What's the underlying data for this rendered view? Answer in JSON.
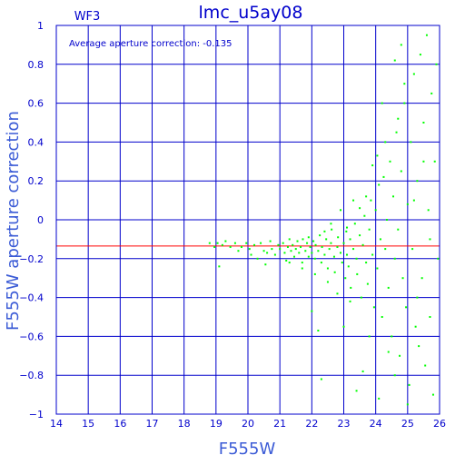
{
  "chart_data": {
    "type": "scatter",
    "title": "lmc_u5ay08",
    "panel_label": "WF3",
    "annotation": "Average aperture correction: -0.135",
    "xlabel": "F555W",
    "ylabel": "F555W aperture correction",
    "xlim": [
      14,
      26
    ],
    "ylim": [
      -1,
      1
    ],
    "x_ticks": [
      14,
      15,
      16,
      17,
      18,
      19,
      20,
      21,
      22,
      23,
      24,
      25,
      26
    ],
    "y_ticks": [
      -1,
      -0.8,
      -0.6,
      -0.4,
      -0.2,
      0,
      0.2,
      0.4,
      0.6,
      0.8,
      1
    ],
    "x_tick_labels": [
      "14",
      "15",
      "16",
      "17",
      "18",
      "19",
      "20",
      "21",
      "22",
      "23",
      "24",
      "25",
      "26"
    ],
    "y_tick_labels": [
      "−1",
      "−0.8",
      "−0.6",
      "−0.4",
      "−0.2",
      "0",
      "0.2",
      "0.4",
      "0.6",
      "0.8",
      "1"
    ],
    "grid": true,
    "reference_line": {
      "y": -0.135,
      "color": "#ff0000"
    },
    "colors": {
      "axis": "#0000cc",
      "points": "#00ff00",
      "reference": "#ff0000",
      "axis_title": "#3b5bd6"
    },
    "series": [
      {
        "points": [
          [
            18.8,
            -0.12
          ],
          [
            18.95,
            -0.14
          ],
          [
            19.05,
            -0.12
          ],
          [
            19.1,
            -0.24
          ],
          [
            19.2,
            -0.13
          ],
          [
            19.3,
            -0.11
          ],
          [
            19.45,
            -0.14
          ],
          [
            19.6,
            -0.12
          ],
          [
            19.8,
            -0.14
          ],
          [
            19.95,
            -0.12
          ],
          [
            20.05,
            -0.15
          ],
          [
            20.2,
            -0.13
          ],
          [
            20.3,
            -0.2
          ],
          [
            20.4,
            -0.12
          ],
          [
            20.5,
            -0.16
          ],
          [
            20.55,
            -0.23
          ],
          [
            20.7,
            -0.11
          ],
          [
            20.75,
            -0.15
          ],
          [
            20.85,
            -0.18
          ],
          [
            20.95,
            -0.13
          ],
          [
            21.0,
            -0.15
          ],
          [
            21.1,
            -0.12
          ],
          [
            21.15,
            -0.17
          ],
          [
            21.2,
            -0.21
          ],
          [
            21.25,
            -0.14
          ],
          [
            21.3,
            -0.1
          ],
          [
            21.35,
            -0.16
          ],
          [
            21.4,
            -0.13
          ],
          [
            21.45,
            -0.19
          ],
          [
            21.5,
            -0.15
          ],
          [
            21.55,
            -0.11
          ],
          [
            21.6,
            -0.17
          ],
          [
            21.65,
            -0.14
          ],
          [
            21.7,
            -0.22
          ],
          [
            21.72,
            -0.1
          ],
          [
            21.8,
            -0.16
          ],
          [
            21.85,
            -0.12
          ],
          [
            21.9,
            -0.19
          ],
          [
            21.95,
            -0.14
          ],
          [
            22.0,
            -0.17
          ],
          [
            22.05,
            -0.11
          ],
          [
            22.1,
            -0.2
          ],
          [
            22.12,
            -0.13
          ],
          [
            22.2,
            -0.16
          ],
          [
            22.25,
            -0.08
          ],
          [
            22.3,
            -0.22
          ],
          [
            22.32,
            -0.14
          ],
          [
            22.4,
            -0.18
          ],
          [
            22.45,
            -0.1
          ],
          [
            22.5,
            -0.25
          ],
          [
            22.55,
            -0.15
          ],
          [
            22.6,
            -0.12
          ],
          [
            22.62,
            -0.05
          ],
          [
            22.7,
            -0.19
          ],
          [
            22.72,
            -0.27
          ],
          [
            22.8,
            -0.14
          ],
          [
            22.82,
            -0.09
          ],
          [
            22.9,
            -0.17
          ],
          [
            22.95,
            -0.22
          ],
          [
            23.0,
            -0.12
          ],
          [
            23.05,
            -0.3
          ],
          [
            23.08,
            -0.06
          ],
          [
            23.1,
            -0.18
          ],
          [
            23.15,
            -0.24
          ],
          [
            23.2,
            -0.1
          ],
          [
            23.22,
            -0.35
          ],
          [
            23.3,
            -0.15
          ],
          [
            23.35,
            -0.02
          ],
          [
            23.4,
            -0.2
          ],
          [
            23.42,
            -0.28
          ],
          [
            23.5,
            -0.08
          ],
          [
            23.55,
            -0.4
          ],
          [
            23.6,
            -0.13
          ],
          [
            23.65,
            0.02
          ],
          [
            23.7,
            -0.22
          ],
          [
            23.75,
            -0.33
          ],
          [
            23.8,
            -0.05
          ],
          [
            23.85,
            0.1
          ],
          [
            23.9,
            -0.18
          ],
          [
            23.95,
            -0.45
          ],
          [
            24.0,
            0.05
          ],
          [
            24.05,
            -0.25
          ],
          [
            24.1,
            0.18
          ],
          [
            24.15,
            -0.1
          ],
          [
            24.2,
            -0.5
          ],
          [
            24.25,
            0.22
          ],
          [
            24.3,
            -0.15
          ],
          [
            24.35,
            0.0
          ],
          [
            24.4,
            -0.35
          ],
          [
            24.45,
            0.3
          ],
          [
            24.5,
            -0.6
          ],
          [
            24.55,
            0.12
          ],
          [
            24.6,
            -0.2
          ],
          [
            24.65,
            0.45
          ],
          [
            24.7,
            -0.05
          ],
          [
            24.75,
            -0.7
          ],
          [
            24.8,
            0.25
          ],
          [
            24.85,
            -0.3
          ],
          [
            24.9,
            0.6
          ],
          [
            24.95,
            -0.45
          ],
          [
            25.0,
            0.08
          ],
          [
            25.05,
            -0.85
          ],
          [
            25.1,
            0.4
          ],
          [
            25.15,
            -0.15
          ],
          [
            25.2,
            0.75
          ],
          [
            25.25,
            -0.55
          ],
          [
            25.3,
            0.2
          ],
          [
            25.35,
            -0.65
          ],
          [
            25.4,
            0.85
          ],
          [
            25.45,
            -0.3
          ],
          [
            25.5,
            0.5
          ],
          [
            25.55,
            -0.75
          ],
          [
            25.6,
            0.95
          ],
          [
            25.65,
            0.05
          ],
          [
            25.7,
            -0.5
          ],
          [
            25.75,
            0.65
          ],
          [
            25.8,
            -0.9
          ],
          [
            25.85,
            0.3
          ],
          [
            25.9,
            0.8
          ],
          [
            25.95,
            -0.2
          ],
          [
            22.2,
            -0.57
          ],
          [
            22.3,
            -0.82
          ],
          [
            22.0,
            -0.47
          ],
          [
            23.4,
            -0.88
          ],
          [
            23.6,
            -0.78
          ],
          [
            24.1,
            -0.92
          ],
          [
            25.0,
            -0.95
          ],
          [
            24.8,
            0.9
          ],
          [
            24.9,
            0.7
          ],
          [
            24.6,
            0.82
          ],
          [
            23.9,
            0.28
          ],
          [
            24.3,
            0.4
          ],
          [
            24.05,
            0.33
          ],
          [
            23.7,
            0.12
          ],
          [
            23.5,
            0.06
          ],
          [
            23.3,
            0.1
          ],
          [
            22.9,
            0.05
          ],
          [
            22.6,
            -0.02
          ],
          [
            23.1,
            -0.04
          ],
          [
            22.4,
            -0.06
          ],
          [
            21.9,
            -0.09
          ],
          [
            20.6,
            -0.17
          ],
          [
            20.1,
            -0.18
          ],
          [
            19.7,
            -0.16
          ],
          [
            21.3,
            -0.22
          ],
          [
            21.7,
            -0.25
          ],
          [
            22.1,
            -0.28
          ],
          [
            22.5,
            -0.32
          ],
          [
            22.8,
            -0.38
          ],
          [
            23.2,
            -0.42
          ],
          [
            23.0,
            -0.55
          ],
          [
            23.8,
            -0.6
          ],
          [
            24.4,
            -0.68
          ],
          [
            24.6,
            -0.8
          ],
          [
            25.3,
            -0.4
          ],
          [
            25.7,
            -0.1
          ],
          [
            25.2,
            0.1
          ],
          [
            25.5,
            0.3
          ],
          [
            24.2,
            0.6
          ],
          [
            24.7,
            0.52
          ]
        ]
      }
    ]
  }
}
